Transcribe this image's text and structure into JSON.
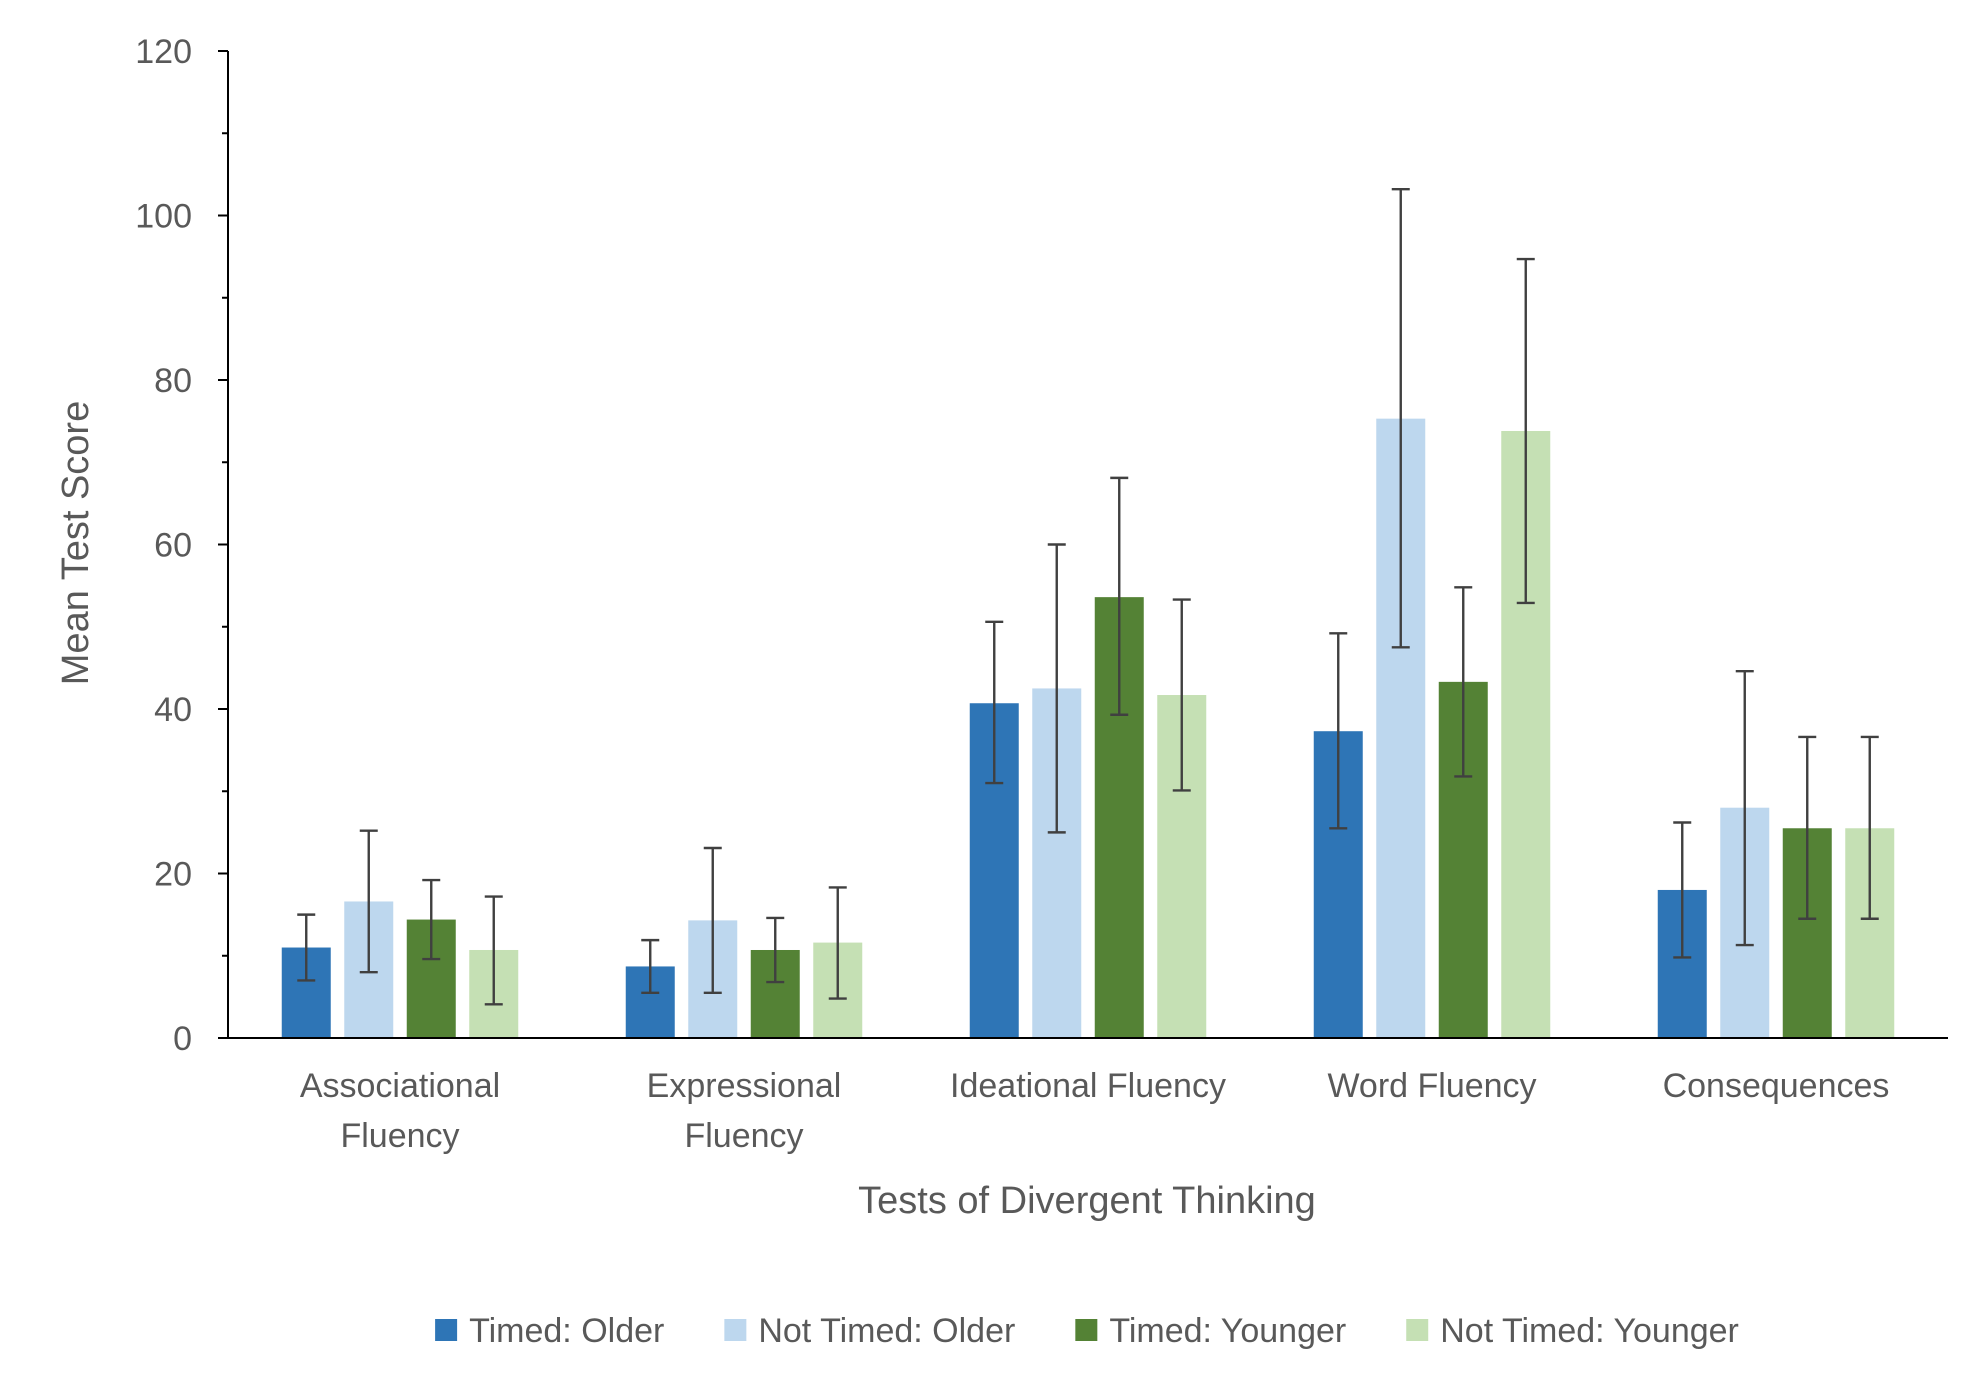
{
  "chart_data": {
    "type": "bar",
    "title": "",
    "xlabel": "Tests of Divergent Thinking",
    "ylabel": "Mean Test Score",
    "ylim": [
      0,
      120
    ],
    "yticks": [
      "0",
      "20",
      "40",
      "60",
      "80",
      "100",
      "120"
    ],
    "grid": false,
    "legend_position": "bottom",
    "categories": [
      [
        "Associational",
        "Fluency"
      ],
      [
        "Expressional",
        "Fluency"
      ],
      [
        "Ideational Fluency"
      ],
      [
        "Word Fluency"
      ],
      [
        "Consequences"
      ]
    ],
    "series": [
      {
        "name": "Timed: Older",
        "color": "#2E75B6",
        "values": [
          11.0,
          8.7,
          40.7,
          37.3,
          18.0
        ],
        "error_low": [
          7.0,
          5.5,
          31.0,
          25.5,
          9.8
        ],
        "error_high": [
          15.0,
          11.9,
          50.6,
          49.2,
          26.2
        ]
      },
      {
        "name": "Not Timed: Older",
        "color": "#BDD7EE",
        "values": [
          16.6,
          14.3,
          42.5,
          75.3,
          28.0
        ],
        "error_low": [
          8.0,
          5.5,
          25.0,
          47.5,
          11.3
        ],
        "error_high": [
          25.2,
          23.1,
          60.0,
          103.2,
          44.6
        ]
      },
      {
        "name": "Timed: Younger",
        "color": "#548235",
        "values": [
          14.4,
          10.7,
          53.6,
          43.3,
          25.5
        ],
        "error_low": [
          9.6,
          6.8,
          39.3,
          31.8,
          14.5
        ],
        "error_high": [
          19.2,
          14.6,
          68.1,
          54.8,
          36.6
        ]
      },
      {
        "name": "Not Timed: Younger",
        "color": "#C5E0B4",
        "values": [
          10.7,
          11.6,
          41.7,
          73.8,
          25.5
        ],
        "error_low": [
          4.1,
          4.8,
          30.1,
          52.9,
          14.5
        ],
        "error_high": [
          17.2,
          18.3,
          53.3,
          94.7,
          36.6
        ]
      }
    ]
  }
}
